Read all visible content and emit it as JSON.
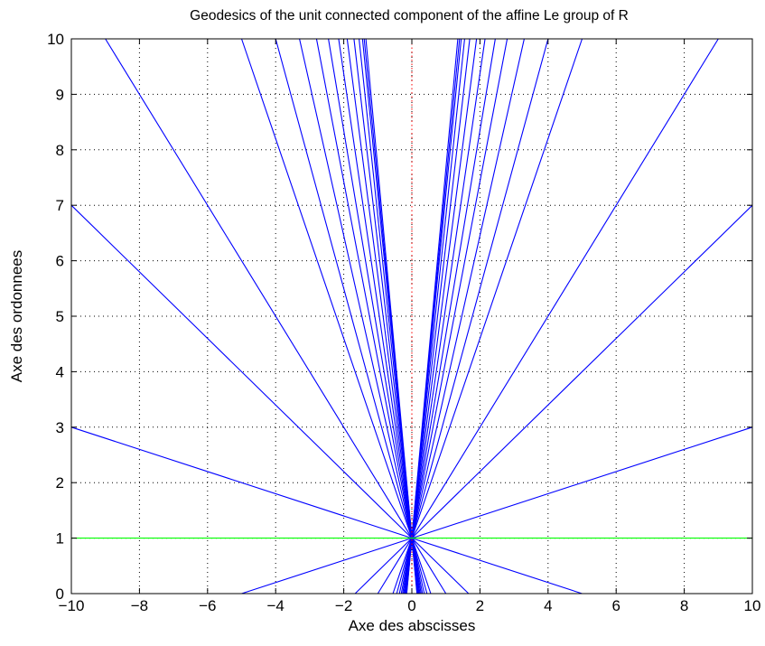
{
  "chart_data": {
    "type": "line",
    "title": "Geodesics of the unit connected component of the affine Le group of R",
    "xlabel": "Axe des abscisses",
    "ylabel": "Axe des ordonnees",
    "xlim": [
      -10,
      10
    ],
    "ylim": [
      0,
      10
    ],
    "xticks": [
      -10,
      -8,
      -6,
      -4,
      -2,
      0,
      2,
      4,
      6,
      8,
      10
    ],
    "yticks": [
      0,
      1,
      2,
      3,
      4,
      5,
      6,
      7,
      8,
      9,
      10
    ],
    "xtick_labels": [
      "−10",
      "−8",
      "−6",
      "−4",
      "−2",
      "0",
      "2",
      "4",
      "6",
      "8",
      "10"
    ],
    "ytick_labels": [
      "0",
      "1",
      "2",
      "3",
      "4",
      "5",
      "6",
      "7",
      "8",
      "9",
      "10"
    ],
    "grid": true,
    "colors": {
      "geodesics": "#0000ff",
      "horizontal": "#00ff00",
      "vertical": "#ff0000"
    },
    "common_point": [
      0,
      1
    ],
    "series": [
      {
        "color": "blue",
        "points": [
          [
            -10,
            3
          ],
          [
            0,
            1
          ],
          [
            5,
            0
          ]
        ]
      },
      {
        "color": "blue",
        "points": [
          [
            -10,
            7
          ],
          [
            0,
            1
          ],
          [
            1.6667,
            0
          ]
        ]
      },
      {
        "color": "blue",
        "points": [
          [
            -9.0,
            10
          ],
          [
            0,
            1
          ],
          [
            1.0,
            0
          ]
        ]
      },
      {
        "color": "blue",
        "points": [
          [
            -5.0,
            10
          ],
          [
            0,
            1
          ],
          [
            0.5556,
            0
          ]
        ]
      },
      {
        "color": "blue",
        "points": [
          [
            -4.0,
            10
          ],
          [
            0,
            1
          ],
          [
            0.4444,
            0
          ]
        ]
      },
      {
        "color": "blue",
        "points": [
          [
            -3.3,
            10
          ],
          [
            0,
            1
          ],
          [
            0.3667,
            0
          ]
        ]
      },
      {
        "color": "blue",
        "points": [
          [
            -2.8,
            10
          ],
          [
            0,
            1
          ],
          [
            0.3111,
            0
          ]
        ]
      },
      {
        "color": "blue",
        "points": [
          [
            -2.45,
            10
          ],
          [
            0,
            1
          ],
          [
            0.2722,
            0
          ]
        ]
      },
      {
        "color": "blue",
        "points": [
          [
            -2.15,
            10
          ],
          [
            0,
            1
          ],
          [
            0.2389,
            0
          ]
        ]
      },
      {
        "color": "blue",
        "points": [
          [
            -1.9,
            10
          ],
          [
            0,
            1
          ],
          [
            0.2111,
            0
          ]
        ]
      },
      {
        "color": "blue",
        "points": [
          [
            -1.7,
            10
          ],
          [
            0,
            1
          ],
          [
            0.1889,
            0
          ]
        ]
      },
      {
        "color": "blue",
        "points": [
          [
            -1.55,
            10
          ],
          [
            0,
            1
          ],
          [
            0.1722,
            0
          ]
        ]
      },
      {
        "color": "blue",
        "points": [
          [
            -1.45,
            10
          ],
          [
            0,
            1
          ],
          [
            0.1611,
            0
          ]
        ]
      },
      {
        "color": "blue",
        "points": [
          [
            -1.4,
            10
          ],
          [
            0,
            1
          ],
          [
            0.1556,
            0
          ]
        ]
      },
      {
        "color": "blue",
        "points": [
          [
            -1.35,
            10
          ],
          [
            0,
            1
          ],
          [
            0.15,
            0
          ]
        ]
      },
      {
        "color": "blue",
        "points": [
          [
            10,
            3
          ],
          [
            0,
            1
          ],
          [
            -5,
            0
          ]
        ]
      },
      {
        "color": "blue",
        "points": [
          [
            10,
            7
          ],
          [
            0,
            1
          ],
          [
            -1.6667,
            0
          ]
        ]
      },
      {
        "color": "blue",
        "points": [
          [
            9.0,
            10
          ],
          [
            0,
            1
          ],
          [
            -1.0,
            0
          ]
        ]
      },
      {
        "color": "blue",
        "points": [
          [
            5.0,
            10
          ],
          [
            0,
            1
          ],
          [
            -0.5556,
            0
          ]
        ]
      },
      {
        "color": "blue",
        "points": [
          [
            4.0,
            10
          ],
          [
            0,
            1
          ],
          [
            -0.4444,
            0
          ]
        ]
      },
      {
        "color": "blue",
        "points": [
          [
            3.3,
            10
          ],
          [
            0,
            1
          ],
          [
            -0.3667,
            0
          ]
        ]
      },
      {
        "color": "blue",
        "points": [
          [
            2.8,
            10
          ],
          [
            0,
            1
          ],
          [
            -0.3111,
            0
          ]
        ]
      },
      {
        "color": "blue",
        "points": [
          [
            2.45,
            10
          ],
          [
            0,
            1
          ],
          [
            -0.2722,
            0
          ]
        ]
      },
      {
        "color": "blue",
        "points": [
          [
            2.15,
            10
          ],
          [
            0,
            1
          ],
          [
            -0.2389,
            0
          ]
        ]
      },
      {
        "color": "blue",
        "points": [
          [
            1.9,
            10
          ],
          [
            0,
            1
          ],
          [
            -0.2111,
            0
          ]
        ]
      },
      {
        "color": "blue",
        "points": [
          [
            1.7,
            10
          ],
          [
            0,
            1
          ],
          [
            -0.1889,
            0
          ]
        ]
      },
      {
        "color": "blue",
        "points": [
          [
            1.55,
            10
          ],
          [
            0,
            1
          ],
          [
            -0.1722,
            0
          ]
        ]
      },
      {
        "color": "blue",
        "points": [
          [
            1.45,
            10
          ],
          [
            0,
            1
          ],
          [
            -0.1611,
            0
          ]
        ]
      },
      {
        "color": "blue",
        "points": [
          [
            1.4,
            10
          ],
          [
            0,
            1
          ],
          [
            -0.1556,
            0
          ]
        ]
      },
      {
        "color": "blue",
        "points": [
          [
            1.35,
            10
          ],
          [
            0,
            1
          ],
          [
            -0.15,
            0
          ]
        ]
      },
      {
        "color": "green",
        "points": [
          [
            -10,
            1
          ],
          [
            10,
            1
          ]
        ]
      },
      {
        "color": "red",
        "style": "dotted",
        "points": [
          [
            0,
            0
          ],
          [
            0,
            10
          ]
        ]
      }
    ]
  }
}
